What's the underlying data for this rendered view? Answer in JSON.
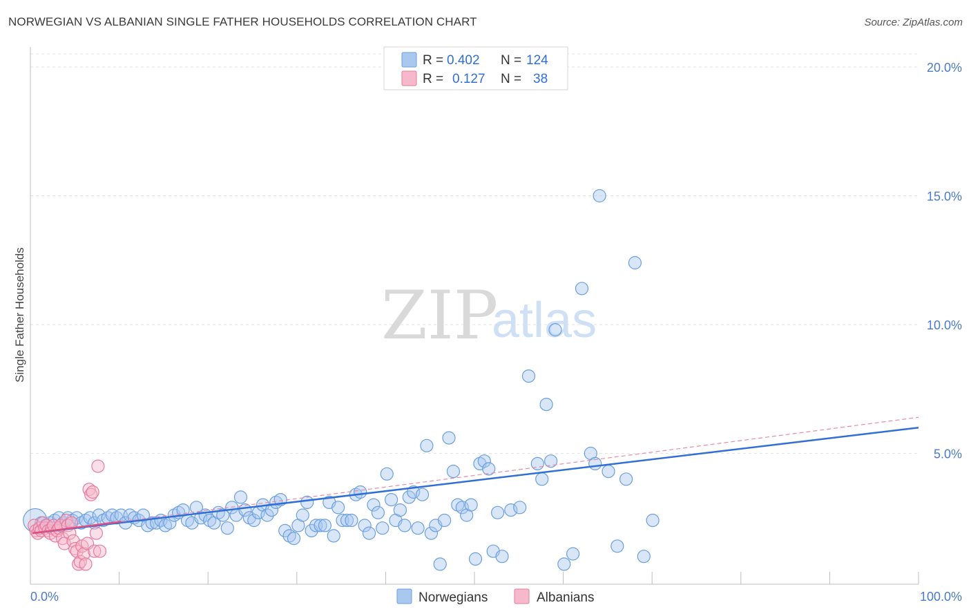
{
  "header": {
    "title": "NORWEGIAN VS ALBANIAN SINGLE FATHER HOUSEHOLDS CORRELATION CHART",
    "source": "Source: ZipAtlas.com"
  },
  "watermark": {
    "zip": "ZIP",
    "atlas": "atlas"
  },
  "legend": {
    "rows": [
      {
        "r_label": "R =",
        "r_value": "0.402",
        "n_label": "N =",
        "n_value": "124",
        "color": "#a9c8f0"
      },
      {
        "r_label": "R =",
        "r_value": "0.127",
        "n_label": "N =",
        "n_value": "38",
        "color": "#f6b9cb"
      }
    ]
  },
  "chart_data": {
    "type": "scatter",
    "title": "NORWEGIAN VS ALBANIAN SINGLE FATHER HOUSEHOLDS CORRELATION CHART",
    "xlabel": "",
    "ylabel": "Single Father Households",
    "xlim": [
      0,
      100
    ],
    "ylim": [
      0,
      20.5
    ],
    "x_tick_labels": [
      "0.0%",
      "100.0%"
    ],
    "y_ticks": [
      {
        "value": 5,
        "label": "5.0%"
      },
      {
        "value": 10,
        "label": "10.0%"
      },
      {
        "value": 15,
        "label": "15.0%"
      },
      {
        "value": 20,
        "label": "20.0%"
      }
    ],
    "grid": "horizontal-dashed",
    "legend_position": "top-center",
    "series": [
      {
        "name": "Norwegians",
        "color": "#6a9fe0",
        "fill": "#a9c8f0",
        "trend": {
          "x": [
            0,
            100
          ],
          "y": [
            1.9,
            6.0
          ],
          "style": "solid"
        },
        "points": [
          [
            0.3,
            2.4
          ],
          [
            1,
            2.3
          ],
          [
            1.5,
            2.2
          ],
          [
            2,
            2.3
          ],
          [
            2.5,
            2.4
          ],
          [
            3,
            2.5
          ],
          [
            3.5,
            2.3
          ],
          [
            4,
            2.5
          ],
          [
            4.5,
            2.4
          ],
          [
            5,
            2.5
          ],
          [
            5.5,
            2.3
          ],
          [
            6,
            2.4
          ],
          [
            6.5,
            2.5
          ],
          [
            7,
            2.3
          ],
          [
            7.5,
            2.6
          ],
          [
            8,
            2.4
          ],
          [
            8.5,
            2.5
          ],
          [
            9,
            2.6
          ],
          [
            9.5,
            2.5
          ],
          [
            10,
            2.6
          ],
          [
            10.5,
            2.3
          ],
          [
            11,
            2.6
          ],
          [
            11.5,
            2.5
          ],
          [
            12,
            2.4
          ],
          [
            12.5,
            2.6
          ],
          [
            13,
            2.2
          ],
          [
            13.5,
            2.3
          ],
          [
            14,
            2.3
          ],
          [
            14.5,
            2.4
          ],
          [
            15,
            2.2
          ],
          [
            15.5,
            2.3
          ],
          [
            16,
            2.6
          ],
          [
            16.5,
            2.7
          ],
          [
            17,
            2.8
          ],
          [
            17.5,
            2.4
          ],
          [
            18,
            2.3
          ],
          [
            18.5,
            2.9
          ],
          [
            19,
            2.5
          ],
          [
            19.5,
            2.6
          ],
          [
            20,
            2.4
          ],
          [
            20.5,
            2.3
          ],
          [
            21,
            2.7
          ],
          [
            21.5,
            2.6
          ],
          [
            22,
            2.1
          ],
          [
            22.5,
            2.9
          ],
          [
            23,
            2.6
          ],
          [
            23.5,
            3.3
          ],
          [
            24,
            2.8
          ],
          [
            24.5,
            2.5
          ],
          [
            25,
            2.4
          ],
          [
            25.5,
            2.7
          ],
          [
            26,
            3.0
          ],
          [
            26.5,
            2.6
          ],
          [
            27,
            2.8
          ],
          [
            27.5,
            3.1
          ],
          [
            28,
            3.2
          ],
          [
            28.5,
            2.0
          ],
          [
            29,
            1.8
          ],
          [
            29.5,
            1.7
          ],
          [
            30,
            2.2
          ],
          [
            30.5,
            2.6
          ],
          [
            31,
            3.1
          ],
          [
            31.5,
            2.0
          ],
          [
            32,
            2.2
          ],
          [
            32.5,
            2.2
          ],
          [
            33,
            2.2
          ],
          [
            33.5,
            3.1
          ],
          [
            34,
            1.8
          ],
          [
            34.5,
            2.9
          ],
          [
            35,
            2.4
          ],
          [
            35.5,
            2.4
          ],
          [
            36,
            2.4
          ],
          [
            36.5,
            3.4
          ],
          [
            37,
            3.5
          ],
          [
            37.5,
            2.2
          ],
          [
            38,
            1.9
          ],
          [
            38.5,
            3.0
          ],
          [
            39,
            2.7
          ],
          [
            39.5,
            2.1
          ],
          [
            40,
            4.2
          ],
          [
            40.5,
            3.2
          ],
          [
            41,
            2.4
          ],
          [
            41.5,
            2.8
          ],
          [
            42,
            2.2
          ],
          [
            42.5,
            3.3
          ],
          [
            43,
            3.5
          ],
          [
            43.5,
            2.1
          ],
          [
            44,
            3.4
          ],
          [
            44.5,
            5.3
          ],
          [
            45,
            1.9
          ],
          [
            45.5,
            2.2
          ],
          [
            46,
            0.7
          ],
          [
            46.5,
            2.4
          ],
          [
            47,
            5.6
          ],
          [
            47.5,
            4.3
          ],
          [
            48,
            3.0
          ],
          [
            48.5,
            2.9
          ],
          [
            49,
            2.6
          ],
          [
            49.5,
            3.0
          ],
          [
            50,
            0.9
          ],
          [
            50.5,
            4.6
          ],
          [
            51,
            4.7
          ],
          [
            51.5,
            4.4
          ],
          [
            52,
            1.2
          ],
          [
            52.5,
            2.7
          ],
          [
            53,
            1.0
          ],
          [
            54,
            2.8
          ],
          [
            55,
            2.9
          ],
          [
            56,
            8.0
          ],
          [
            57,
            4.6
          ],
          [
            57.5,
            4.0
          ],
          [
            58,
            6.9
          ],
          [
            58.5,
            4.7
          ],
          [
            59,
            9.8
          ],
          [
            60,
            0.7
          ],
          [
            61,
            1.1
          ],
          [
            62,
            11.4
          ],
          [
            63,
            5.0
          ],
          [
            63.5,
            4.6
          ],
          [
            64,
            15.0
          ],
          [
            65,
            4.3
          ],
          [
            66,
            1.4
          ],
          [
            67,
            4.0
          ],
          [
            68,
            12.4
          ],
          [
            69,
            1.0
          ],
          [
            70,
            2.4
          ]
        ]
      },
      {
        "name": "Albanians",
        "color": "#e77a9c",
        "fill": "#f6b9cb",
        "trend": {
          "x": [
            0,
            100
          ],
          "y": [
            1.9,
            6.4
          ],
          "style": "dashed"
        },
        "points": [
          [
            0.2,
            2.2
          ],
          [
            0.4,
            2.0
          ],
          [
            0.6,
            1.9
          ],
          [
            0.8,
            2.1
          ],
          [
            1,
            2.0
          ],
          [
            1.2,
            2.3
          ],
          [
            1.4,
            2.1
          ],
          [
            1.6,
            2.2
          ],
          [
            1.8,
            2.0
          ],
          [
            2,
            1.9
          ],
          [
            2.2,
            2.1
          ],
          [
            2.4,
            2.2
          ],
          [
            2.6,
            1.8
          ],
          [
            2.8,
            2.0
          ],
          [
            3,
            2.1
          ],
          [
            3.2,
            2.2
          ],
          [
            3.4,
            1.7
          ],
          [
            3.6,
            1.5
          ],
          [
            3.8,
            2.4
          ],
          [
            4,
            2.2
          ],
          [
            4.2,
            1.9
          ],
          [
            4.4,
            2.3
          ],
          [
            4.6,
            1.6
          ],
          [
            4.8,
            1.3
          ],
          [
            5,
            1.2
          ],
          [
            5.2,
            0.7
          ],
          [
            5.4,
            0.8
          ],
          [
            5.6,
            1.4
          ],
          [
            5.8,
            1.1
          ],
          [
            6,
            0.7
          ],
          [
            6.2,
            1.5
          ],
          [
            6.4,
            3.6
          ],
          [
            6.6,
            3.4
          ],
          [
            6.8,
            3.5
          ],
          [
            7,
            1.2
          ],
          [
            7.2,
            1.9
          ],
          [
            7.4,
            4.5
          ],
          [
            7.6,
            1.2
          ]
        ]
      }
    ]
  },
  "bottom_legend": [
    {
      "label": "Norwegians",
      "color": "#a9c8f0"
    },
    {
      "label": "Albanians",
      "color": "#f6b9cb"
    }
  ]
}
